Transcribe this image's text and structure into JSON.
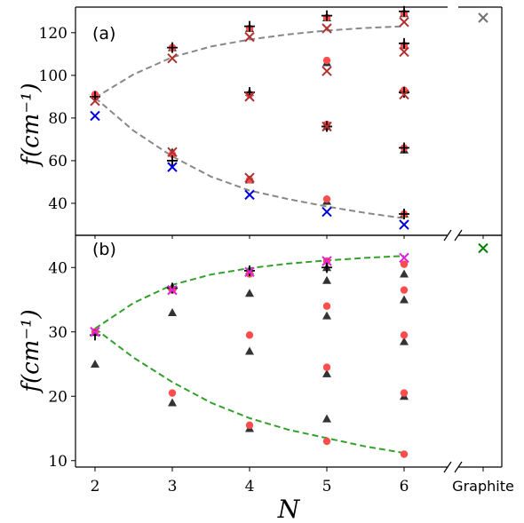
{
  "chart_data": [
    {
      "type": "scatter",
      "panel_label": "(a)",
      "ylabel": "f(cm⁻¹)",
      "ylim": [
        25,
        132
      ],
      "yticks": [
        40,
        60,
        80,
        100,
        120
      ],
      "grid": false,
      "series": [
        {
          "marker": "triangle",
          "color": "#333333",
          "points": [
            [
              2,
              91
            ],
            [
              3,
              113
            ],
            [
              3,
              64
            ],
            [
              4,
              122
            ],
            [
              4,
              92
            ],
            [
              4,
              51
            ],
            [
              5,
              127
            ],
            [
              5,
              106
            ],
            [
              5,
              76
            ],
            [
              5,
              41
            ],
            [
              6,
              129
            ],
            [
              6,
              114
            ],
            [
              6,
              93
            ],
            [
              6,
              65
            ],
            [
              6,
              35
            ]
          ]
        },
        {
          "marker": "circle",
          "color": "#ff4d4d",
          "points": [
            [
              2,
              91
            ],
            [
              3,
              113
            ],
            [
              3,
              63
            ],
            [
              4,
              122
            ],
            [
              4,
              91
            ],
            [
              4,
              51
            ],
            [
              5,
              127
            ],
            [
              5,
              107
            ],
            [
              5,
              77
            ],
            [
              5,
              42
            ],
            [
              6,
              129
            ],
            [
              6,
              114
            ],
            [
              6,
              93
            ],
            [
              6,
              66
            ],
            [
              6,
              35
            ]
          ]
        },
        {
          "marker": "plus",
          "color": "#000000",
          "points": [
            [
              2,
              90
            ],
            [
              3,
              113
            ],
            [
              3,
              60
            ],
            [
              4,
              123
            ],
            [
              4,
              92
            ],
            [
              5,
              128
            ],
            [
              5,
              76
            ],
            [
              6,
              130
            ],
            [
              6,
              115
            ],
            [
              6,
              92
            ],
            [
              6,
              66
            ],
            [
              6,
              35
            ]
          ]
        },
        {
          "marker": "x",
          "color": "#b03030",
          "points": [
            [
              2,
              88
            ],
            [
              3,
              108
            ],
            [
              3,
              64
            ],
            [
              4,
              118
            ],
            [
              4,
              90
            ],
            [
              4,
              52
            ],
            [
              5,
              122
            ],
            [
              5,
              102
            ],
            [
              5,
              76
            ],
            [
              6,
              125
            ],
            [
              6,
              111
            ],
            [
              6,
              91
            ]
          ]
        },
        {
          "marker": "x",
          "color": "#0000dd",
          "points": [
            [
              2,
              81
            ],
            [
              3,
              57
            ],
            [
              4,
              44
            ],
            [
              5,
              36
            ],
            [
              6,
              30
            ]
          ]
        },
        {
          "marker": "x",
          "color": "#707070",
          "points": [
            [
              7,
              127
            ]
          ]
        }
      ],
      "fit_curves": [
        {
          "style": "dashed",
          "color": "#888888",
          "points": [
            [
              2,
              89.5
            ],
            [
              2.5,
              100.5
            ],
            [
              3,
              108.5
            ],
            [
              3.5,
              113.5
            ],
            [
              4,
              116.8
            ],
            [
              4.5,
              119.2
            ],
            [
              5,
              121
            ],
            [
              5.5,
              122.2
            ],
            [
              6,
              123
            ]
          ]
        },
        {
          "style": "dashed",
          "color": "#888888",
          "points": [
            [
              2,
              89.5
            ],
            [
              2.5,
              74
            ],
            [
              3,
              62
            ],
            [
              3.5,
              52.5
            ],
            [
              4,
              46
            ],
            [
              4.5,
              42
            ],
            [
              5,
              38.5
            ],
            [
              5.5,
              35.5
            ],
            [
              6,
              33
            ]
          ]
        }
      ]
    },
    {
      "type": "scatter",
      "panel_label": "(b)",
      "ylabel": "f(cm⁻¹)",
      "xlabel": "N",
      "ylim": [
        9,
        45
      ],
      "yticks": [
        10,
        20,
        30,
        40
      ],
      "xticks": [
        "2",
        "3",
        "4",
        "5",
        "6",
        "Graphite"
      ],
      "grid": false,
      "series": [
        {
          "marker": "triangle",
          "color": "#333333",
          "points": [
            [
              2,
              25
            ],
            [
              3,
              37
            ],
            [
              3,
              33
            ],
            [
              3,
              19
            ],
            [
              4,
              39.5
            ],
            [
              4,
              36
            ],
            [
              4,
              27
            ],
            [
              4,
              15
            ],
            [
              5,
              40
            ],
            [
              5,
              38
            ],
            [
              5,
              32.5
            ],
            [
              5,
              23.5
            ],
            [
              5,
              16.5
            ],
            [
              6,
              39
            ],
            [
              6,
              35
            ],
            [
              6,
              28.5
            ],
            [
              6,
              20
            ]
          ]
        },
        {
          "marker": "circle",
          "color": "#ff4d4d",
          "points": [
            [
              2,
              30
            ],
            [
              3,
              36.5
            ],
            [
              3,
              20.5
            ],
            [
              4,
              39
            ],
            [
              4,
              29.5
            ],
            [
              4,
              15.5
            ],
            [
              5,
              41
            ],
            [
              5,
              34
            ],
            [
              5,
              24.5
            ],
            [
              5,
              13
            ],
            [
              6,
              40.5
            ],
            [
              6,
              36.5
            ],
            [
              6,
              29.5
            ],
            [
              6,
              20.5
            ],
            [
              6,
              11
            ]
          ]
        },
        {
          "marker": "plus",
          "color": "#000000",
          "points": [
            [
              2,
              29.5
            ],
            [
              3,
              36.8
            ],
            [
              4,
              39.5
            ],
            [
              5,
              40
            ]
          ]
        },
        {
          "marker": "x",
          "color": "#dd22dd",
          "points": [
            [
              2,
              30
            ],
            [
              3,
              36.5
            ],
            [
              4,
              39.3
            ],
            [
              5,
              41
            ],
            [
              6,
              41.5
            ]
          ]
        },
        {
          "marker": "x",
          "color": "#008000",
          "points": [
            [
              7,
              43
            ]
          ]
        }
      ],
      "fit_curves": [
        {
          "style": "dashed",
          "color": "#33a02c",
          "points": [
            [
              2,
              30.5
            ],
            [
              2.5,
              34.5
            ],
            [
              3,
              37.3
            ],
            [
              3.5,
              38.9
            ],
            [
              4,
              39.9
            ],
            [
              4.5,
              40.6
            ],
            [
              5,
              41.1
            ],
            [
              5.5,
              41.5
            ],
            [
              6,
              41.8
            ]
          ]
        },
        {
          "style": "dashed",
          "color": "#33a02c",
          "points": [
            [
              2,
              30.5
            ],
            [
              2.5,
              26
            ],
            [
              3,
              22.2
            ],
            [
              3.5,
              19
            ],
            [
              4,
              16.6
            ],
            [
              4.5,
              14.8
            ],
            [
              5,
              13.5
            ],
            [
              5.5,
              12.2
            ],
            [
              6,
              11.2
            ]
          ]
        }
      ]
    }
  ]
}
